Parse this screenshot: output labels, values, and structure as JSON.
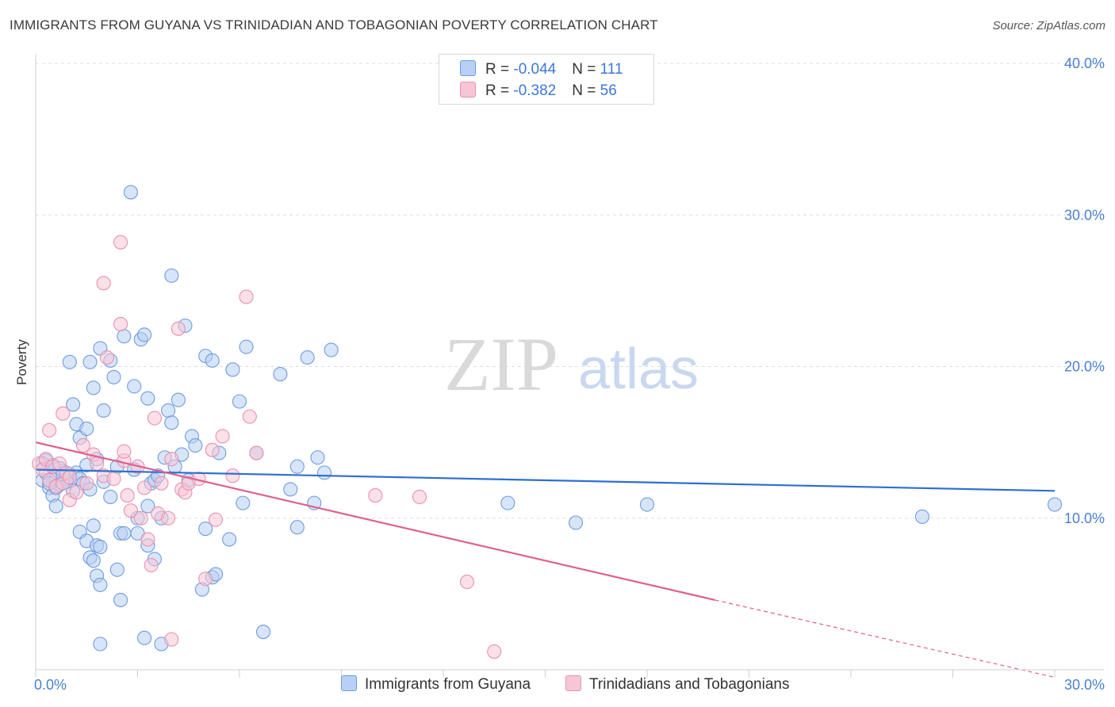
{
  "title": "IMMIGRANTS FROM GUYANA VS TRINIDADIAN AND TOBAGONIAN POVERTY CORRELATION CHART",
  "source": "Source: ZipAtlas.com",
  "watermark": {
    "zip": "ZIP",
    "atlas": "atlas"
  },
  "legend": {
    "rows": [
      {
        "r_label": "R = ",
        "r_value": "-0.044",
        "n_label": "N = ",
        "n_value": "111",
        "fill": "#b7d0f3",
        "stroke": "#6f9be0"
      },
      {
        "r_label": "R = ",
        "r_value": "-0.382",
        "n_label": "N = ",
        "n_value": "56",
        "fill": "#f7c6d6",
        "stroke": "#e991b0"
      }
    ]
  },
  "chart_data": {
    "type": "scatter",
    "title": "IMMIGRANTS FROM GUYANA VS TRINIDADIAN AND TOBAGONIAN POVERTY CORRELATION CHART",
    "xlabel": "",
    "ylabel": "Poverty",
    "xlim": [
      0,
      30
    ],
    "ylim": [
      0,
      40
    ],
    "x_tick_labels": [
      "0.0%",
      "30.0%"
    ],
    "y_ticks": [
      10,
      20,
      30,
      40
    ],
    "y_tick_labels": [
      "10.0%",
      "20.0%",
      "30.0%",
      "40.0%"
    ],
    "grid": true,
    "legend_placement": "top-center",
    "series": [
      {
        "name": "Immigrants from Guyana",
        "color": "#6f9be0",
        "fill": "#b7d0f3",
        "trend": {
          "x": [
            0,
            30
          ],
          "y": [
            13.2,
            11.8
          ],
          "color": "#2e6fd0"
        },
        "points": [
          [
            0.2,
            12.5
          ],
          [
            0.3,
            13.0
          ],
          [
            0.4,
            12.0
          ],
          [
            0.5,
            13.5
          ],
          [
            0.6,
            12.8
          ],
          [
            0.7,
            12.2
          ],
          [
            0.8,
            13.1
          ],
          [
            0.9,
            12.6
          ],
          [
            1.0,
            12.9
          ],
          [
            1.1,
            11.8
          ],
          [
            0.3,
            13.8
          ],
          [
            0.5,
            11.5
          ],
          [
            0.6,
            10.8
          ],
          [
            0.7,
            13.3
          ],
          [
            0.9,
            12.4
          ],
          [
            1.0,
            12.7
          ],
          [
            1.2,
            13.0
          ],
          [
            1.3,
            12.6
          ],
          [
            0.4,
            12.3
          ],
          [
            0.8,
            12.9
          ],
          [
            0.2,
            13.6
          ],
          [
            1.5,
            13.5
          ],
          [
            1.4,
            12.3
          ],
          [
            1.6,
            11.9
          ],
          [
            1.8,
            13.9
          ],
          [
            2.0,
            12.4
          ],
          [
            1.7,
            9.5
          ],
          [
            1.3,
            15.3
          ],
          [
            1.2,
            16.2
          ],
          [
            1.1,
            17.5
          ],
          [
            1.0,
            20.3
          ],
          [
            1.5,
            15.9
          ],
          [
            1.7,
            18.6
          ],
          [
            1.9,
            21.2
          ],
          [
            1.6,
            20.3
          ],
          [
            2.0,
            17.1
          ],
          [
            2.2,
            20.4
          ],
          [
            2.3,
            19.3
          ],
          [
            2.4,
            13.4
          ],
          [
            2.2,
            11.4
          ],
          [
            2.5,
            9.0
          ],
          [
            2.6,
            22.0
          ],
          [
            2.9,
            13.2
          ],
          [
            2.8,
            31.5
          ],
          [
            2.9,
            18.7
          ],
          [
            3.0,
            9.0
          ],
          [
            3.1,
            21.8
          ],
          [
            3.2,
            22.1
          ],
          [
            3.3,
            17.9
          ],
          [
            3.4,
            12.3
          ],
          [
            3.3,
            10.8
          ],
          [
            3.5,
            12.5
          ],
          [
            3.6,
            12.8
          ],
          [
            3.8,
            14.0
          ],
          [
            3.9,
            17.1
          ],
          [
            4.0,
            16.3
          ],
          [
            4.1,
            13.4
          ],
          [
            4.2,
            17.8
          ],
          [
            4.3,
            14.2
          ],
          [
            4.4,
            22.7
          ],
          [
            4.5,
            12.5
          ],
          [
            4.6,
            15.4
          ],
          [
            4.7,
            14.8
          ],
          [
            4.0,
            26.0
          ],
          [
            5.0,
            20.7
          ],
          [
            5.2,
            20.4
          ],
          [
            5.4,
            14.3
          ],
          [
            5.8,
            19.8
          ],
          [
            6.0,
            17.7
          ],
          [
            6.2,
            21.3
          ],
          [
            6.5,
            14.3
          ],
          [
            7.2,
            19.5
          ],
          [
            7.5,
            11.9
          ],
          [
            7.7,
            13.4
          ],
          [
            8.0,
            20.6
          ],
          [
            8.3,
            14.0
          ],
          [
            8.5,
            13.0
          ],
          [
            8.7,
            21.1
          ],
          [
            1.3,
            9.1
          ],
          [
            1.5,
            8.5
          ],
          [
            1.6,
            7.4
          ],
          [
            1.7,
            7.2
          ],
          [
            1.8,
            8.2
          ],
          [
            1.9,
            8.1
          ],
          [
            1.8,
            6.2
          ],
          [
            1.9,
            5.6
          ],
          [
            2.4,
            6.6
          ],
          [
            2.5,
            4.6
          ],
          [
            2.6,
            9.0
          ],
          [
            3.0,
            10.0
          ],
          [
            3.3,
            8.2
          ],
          [
            3.5,
            7.3
          ],
          [
            3.7,
            10.0
          ],
          [
            5.0,
            9.3
          ],
          [
            5.2,
            6.1
          ],
          [
            5.3,
            6.3
          ],
          [
            4.9,
            5.3
          ],
          [
            5.7,
            8.6
          ],
          [
            6.1,
            11.0
          ],
          [
            6.7,
            2.5
          ],
          [
            7.7,
            9.4
          ],
          [
            8.2,
            11.0
          ],
          [
            3.2,
            2.1
          ],
          [
            3.7,
            1.7
          ],
          [
            1.9,
            1.7
          ],
          [
            13.9,
            11.0
          ],
          [
            15.9,
            9.7
          ],
          [
            18.0,
            10.9
          ],
          [
            26.1,
            10.1
          ],
          [
            30.0,
            10.9
          ],
          [
            0.6,
            12.0
          ]
        ]
      },
      {
        "name": "Trinidadians and Tobagonians",
        "color": "#e991b0",
        "fill": "#f7c6d6",
        "trend": {
          "x": [
            0,
            20
          ],
          "y": [
            15.0,
            4.6
          ],
          "dash_to": [
            30,
            -0.5
          ],
          "color": "#e0608f"
        },
        "points": [
          [
            0.1,
            13.6
          ],
          [
            0.2,
            13.2
          ],
          [
            0.3,
            13.9
          ],
          [
            0.4,
            12.5
          ],
          [
            0.5,
            13.4
          ],
          [
            0.6,
            12.1
          ],
          [
            0.7,
            13.6
          ],
          [
            0.8,
            12.3
          ],
          [
            0.9,
            13.0
          ],
          [
            1.0,
            12.7
          ],
          [
            0.4,
            15.8
          ],
          [
            0.8,
            16.9
          ],
          [
            1.0,
            11.2
          ],
          [
            1.2,
            11.7
          ],
          [
            1.4,
            14.8
          ],
          [
            1.5,
            12.3
          ],
          [
            1.7,
            14.2
          ],
          [
            1.8,
            13.6
          ],
          [
            2.0,
            12.8
          ],
          [
            2.1,
            20.6
          ],
          [
            2.3,
            12.6
          ],
          [
            2.6,
            13.8
          ],
          [
            2.7,
            11.5
          ],
          [
            2.8,
            10.5
          ],
          [
            2.5,
            22.8
          ],
          [
            2.6,
            14.4
          ],
          [
            3.0,
            13.4
          ],
          [
            3.1,
            10.0
          ],
          [
            3.2,
            12.0
          ],
          [
            3.3,
            8.6
          ],
          [
            3.4,
            6.9
          ],
          [
            3.5,
            16.6
          ],
          [
            3.6,
            10.3
          ],
          [
            3.7,
            12.3
          ],
          [
            3.9,
            10.0
          ],
          [
            4.0,
            13.9
          ],
          [
            4.2,
            22.5
          ],
          [
            4.3,
            11.9
          ],
          [
            4.4,
            11.7
          ],
          [
            4.5,
            12.3
          ],
          [
            4.8,
            12.6
          ],
          [
            5.0,
            6.0
          ],
          [
            5.2,
            14.5
          ],
          [
            5.3,
            9.9
          ],
          [
            5.5,
            15.4
          ],
          [
            5.8,
            12.8
          ],
          [
            6.2,
            24.6
          ],
          [
            6.5,
            14.3
          ],
          [
            6.3,
            16.7
          ],
          [
            2.0,
            25.5
          ],
          [
            2.5,
            28.2
          ],
          [
            4.0,
            2.0
          ],
          [
            10.0,
            11.5
          ],
          [
            11.3,
            11.4
          ],
          [
            12.7,
            5.8
          ],
          [
            13.5,
            1.2
          ]
        ]
      }
    ]
  }
}
